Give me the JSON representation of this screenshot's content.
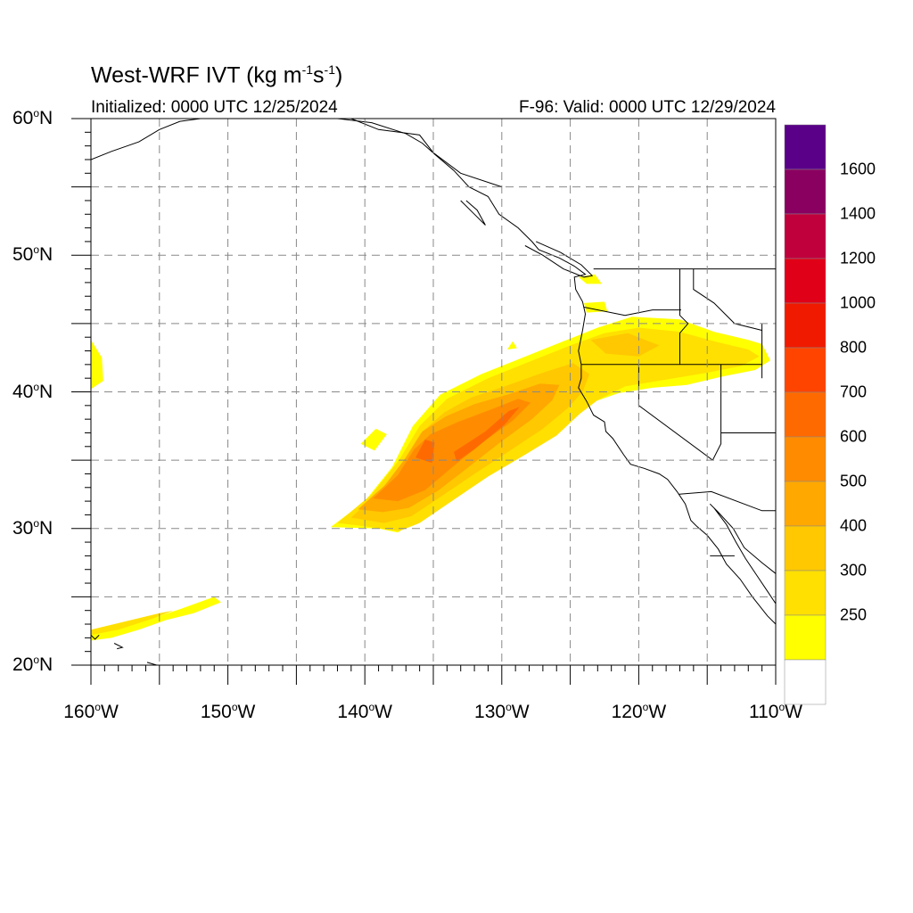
{
  "title": {
    "main": "West-WRF IVT (kg m",
    "sup1": "-1",
    "mid": "s",
    "sup2": "-1",
    "end": ")"
  },
  "subtitle": {
    "initialized": "Initialized: 0000 UTC 12/25/2024",
    "valid": "F-96: Valid: 0000 UTC 12/29/2024"
  },
  "map": {
    "lon_range": [
      -160,
      -110
    ],
    "lat_range": [
      20,
      60
    ],
    "lat_ticks": [
      {
        "value": 60,
        "label": "60",
        "unit": "N"
      },
      {
        "value": 50,
        "label": "50",
        "unit": "N"
      },
      {
        "value": 40,
        "label": "40",
        "unit": "N"
      },
      {
        "value": 30,
        "label": "30",
        "unit": "N"
      },
      {
        "value": 20,
        "label": "20",
        "unit": "N"
      }
    ],
    "lon_ticks": [
      {
        "value": -160,
        "label": "160",
        "unit": "W"
      },
      {
        "value": -150,
        "label": "150",
        "unit": "W"
      },
      {
        "value": -140,
        "label": "140",
        "unit": "W"
      },
      {
        "value": -130,
        "label": "130",
        "unit": "W"
      },
      {
        "value": -120,
        "label": "120",
        "unit": "W"
      },
      {
        "value": -110,
        "label": "110",
        "unit": "W"
      }
    ],
    "grid_spacing_deg": 5,
    "land_color": "#ffffff",
    "ocean_color": "#ffffff",
    "coast_color": "#000000",
    "grid_color": "#888888"
  },
  "colorbar": {
    "levels": [
      {
        "color": "#ffffff",
        "label": ""
      },
      {
        "color": "#ffff00",
        "label": "250"
      },
      {
        "color": "#ffe000",
        "label": "300"
      },
      {
        "color": "#ffc800",
        "label": "400"
      },
      {
        "color": "#ffa800",
        "label": "500"
      },
      {
        "color": "#ff8c00",
        "label": "600"
      },
      {
        "color": "#ff6a00",
        "label": "700"
      },
      {
        "color": "#ff4400",
        "label": "800"
      },
      {
        "color": "#f01a00",
        "label": "1000"
      },
      {
        "color": "#e00018",
        "label": "1200"
      },
      {
        "color": "#c0003c",
        "label": "1400"
      },
      {
        "color": "#8a0060",
        "label": "1600"
      },
      {
        "color": "#5a0088",
        "label": ""
      }
    ]
  }
}
